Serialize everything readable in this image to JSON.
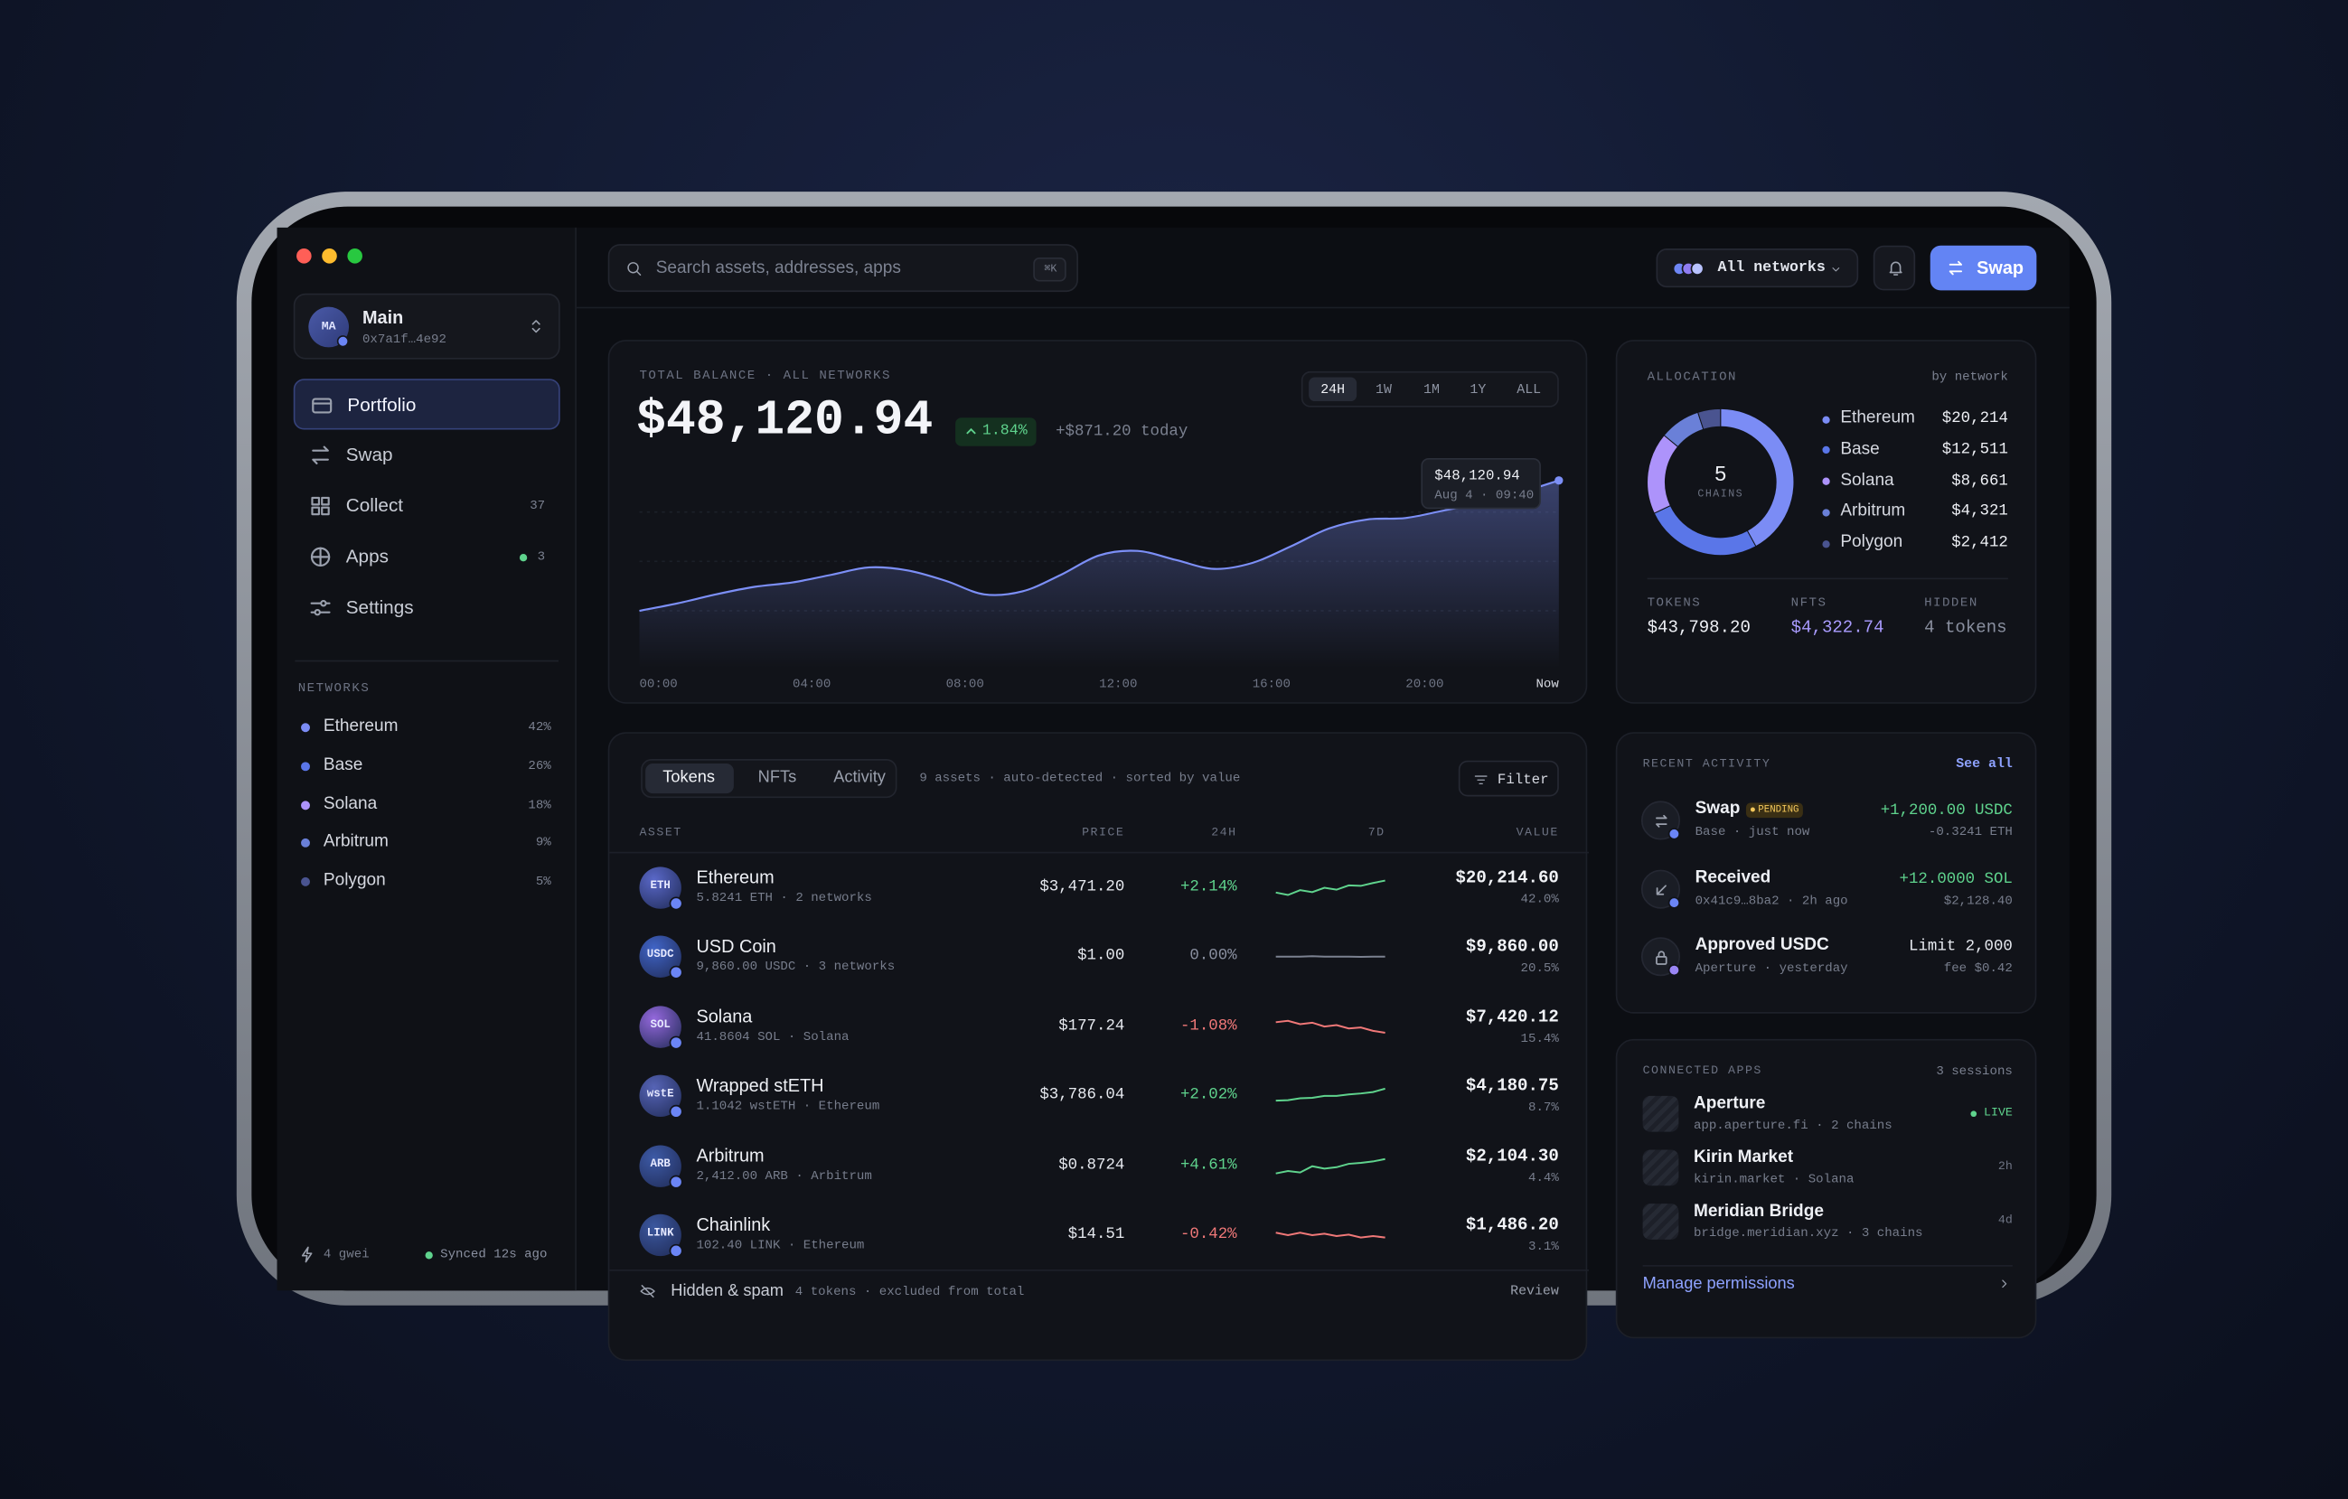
{
  "sidebar": {
    "account": {
      "avatar": "MA",
      "name": "Main",
      "address": "0x7a1f…4e92"
    },
    "nav": [
      {
        "label": "Portfolio"
      },
      {
        "label": "Swap"
      },
      {
        "label": "Collect",
        "badge": "37"
      },
      {
        "label": "Apps",
        "badge": "3"
      },
      {
        "label": "Settings"
      }
    ],
    "networks_title": "NETWORKS",
    "networks": [
      {
        "name": "Ethereum",
        "share": "42%",
        "color": "#7b8cf5"
      },
      {
        "name": "Base",
        "share": "26%",
        "color": "#5a76e8"
      },
      {
        "name": "Solana",
        "share": "18%",
        "color": "#ad93fb"
      },
      {
        "name": "Arbitrum",
        "share": "9%",
        "color": "#6a80d8"
      },
      {
        "name": "Polygon",
        "share": "5%",
        "color": "#4a5490"
      }
    ],
    "gas": "4 gwei",
    "sync": "Synced 12s ago"
  },
  "topbar": {
    "search_placeholder": "Search assets, addresses, apps",
    "shortcut": "⌘K",
    "network_filter": "All networks",
    "swap_button": "Swap"
  },
  "balance_card": {
    "label": "TOTAL BALANCE · ALL NETWORKS",
    "total": "$48,120.94",
    "change_pct": "1.84%",
    "change_today": "+$871.20 today",
    "ranges": [
      "24H",
      "1W",
      "1M",
      "1Y",
      "ALL"
    ],
    "active_range": "24H",
    "tooltip": {
      "value": "$48,120.94",
      "time": "Aug 4 · 09:40"
    }
  },
  "chart_data": [
    {
      "type": "area",
      "x": [
        0,
        1,
        2,
        3,
        4,
        5,
        6,
        7,
        8,
        9,
        10,
        11,
        12,
        13,
        14,
        15,
        16,
        17,
        18,
        19,
        20,
        21,
        22,
        23,
        24
      ],
      "series": [
        {
          "color": "#7c8ff7",
          "values": [
            47249.74,
            47300,
            47360,
            47410,
            47440,
            47490,
            47540,
            47520,
            47450,
            47360,
            47380,
            47490,
            47620,
            47650,
            47590,
            47530,
            47570,
            47680,
            47800,
            47860,
            47870,
            47920,
            47970,
            48040,
            48120.94
          ]
        }
      ],
      "xlim": [
        0,
        24
      ],
      "xticks": [
        {
          "value": 0,
          "label": "00:00"
        },
        {
          "value": 4,
          "label": "04:00"
        },
        {
          "value": 8,
          "label": "08:00"
        },
        {
          "value": 12,
          "label": "12:00"
        },
        {
          "value": 16,
          "label": "16:00"
        },
        {
          "value": 20,
          "label": "20:00"
        },
        {
          "value": 24,
          "label": "Now"
        }
      ],
      "ylim": [
        47000,
        48200
      ]
    },
    {
      "type": "donut",
      "title": "ALLOCATION",
      "subtitle": "by network",
      "center_value": 5,
      "center_label": "CHAINS",
      "categories": [
        "Ethereum",
        "Base",
        "Solana",
        "Arbitrum",
        "Polygon"
      ],
      "values": [
        20214,
        12511,
        8661,
        4321,
        2412
      ],
      "value_labels": [
        "$20,214",
        "$12,511",
        "$8,661",
        "$4,321",
        "$2,412"
      ],
      "colors": [
        "#7b8cf5",
        "#5a76e8",
        "#ad93fb",
        "#6a80d8",
        "#4a5490"
      ]
    }
  ],
  "allocation": {
    "totals": [
      {
        "label": "TOKENS",
        "value": "$43,798.20"
      },
      {
        "label": "NFTS",
        "value": "$4,322.74"
      },
      {
        "label": "HIDDEN",
        "value": "4 tokens"
      }
    ]
  },
  "tokens": {
    "tabs": [
      "Tokens",
      "NFTs",
      "Activity"
    ],
    "active_tab": "Tokens",
    "summary": "9 assets · auto-detected · sorted by value",
    "filter": "Filter",
    "columns": [
      "ASSET",
      "PRICE",
      "24H",
      "7D",
      "VALUE"
    ],
    "sparkline_lim": [
      0,
      10
    ],
    "rows": [
      {
        "symbol": "ETH",
        "name": "Ethereum",
        "detail": "5.8241 ETH · 2 networks",
        "price": "$3,471.20",
        "change": "+2.14%",
        "value": "$20,214.60",
        "share": "42.0%",
        "color": "#5a68c8",
        "spark": [
          3,
          2,
          4,
          3.2,
          5,
          4.2,
          6,
          5.8,
          7,
          8
        ]
      },
      {
        "symbol": "USDC",
        "name": "USD Coin",
        "detail": "9,860.00 USDC · 3 networks",
        "price": "$1.00",
        "change": "0.00%",
        "value": "$9,860.00",
        "share": "20.5%",
        "color": "#4064c6",
        "spark": [
          5,
          5,
          5,
          5.2,
          5,
          5,
          5,
          4.9,
          5,
          5
        ]
      },
      {
        "symbol": "SOL",
        "name": "Solana",
        "detail": "41.8604 SOL · Solana",
        "price": "$177.24",
        "change": "-1.08%",
        "value": "$7,420.12",
        "share": "15.4%",
        "color": "#9468dc",
        "spark": [
          7,
          7.6,
          6.2,
          6.8,
          5.2,
          5.8,
          4.4,
          4.8,
          3.4,
          2.6
        ]
      },
      {
        "symbol": "wstE",
        "name": "Wrapped stETH",
        "detail": "1.1042 wstETH · Ethereum",
        "price": "$3,786.04",
        "change": "+2.02%",
        "value": "$4,180.75",
        "share": "8.7%",
        "color": "#5664b6",
        "spark": [
          3,
          3.2,
          4,
          4.2,
          5,
          5,
          5.6,
          6,
          6.6,
          8
        ]
      },
      {
        "symbol": "ARB",
        "name": "Arbitrum",
        "detail": "2,412.00 ARB · Arbitrum",
        "price": "$0.8724",
        "change": "+4.61%",
        "value": "$2,104.30",
        "share": "4.4%",
        "color": "#3d5aa6",
        "spark": [
          2,
          3,
          2.4,
          5,
          4,
          4.6,
          6,
          6.4,
          7,
          8
        ]
      },
      {
        "symbol": "LINK",
        "name": "Chainlink",
        "detail": "102.40 LINK · Ethereum",
        "price": "$14.51",
        "change": "-0.42%",
        "value": "$1,486.20",
        "share": "3.1%",
        "color": "#3b579e",
        "spark": [
          6,
          5,
          6,
          5,
          5.6,
          4.6,
          5.2,
          4,
          4.6,
          4
        ]
      }
    ],
    "footer": {
      "title": "Hidden & spam",
      "detail": "4 tokens · excluded from total",
      "action": "Review"
    }
  },
  "activity": {
    "title": "RECENT ACTIVITY",
    "action": "See all",
    "items": [
      {
        "title": "Swap",
        "badge": "PENDING",
        "detail": "Base · just now",
        "amount": "+1,200.00 USDC",
        "sub": "-0.3241 ETH"
      },
      {
        "title": "Received",
        "detail": "0x41c9…8ba2 · 2h ago",
        "amount": "+12.0000 SOL",
        "sub": "$2,128.40"
      },
      {
        "title": "Approved USDC",
        "detail": "Aperture · yesterday",
        "amount": "Limit 2,000",
        "sub": "fee $0.42"
      }
    ]
  },
  "apps": {
    "title": "CONNECTED APPS",
    "count": "3 sessions",
    "items": [
      {
        "name": "Aperture",
        "detail": "app.aperture.fi · 2 chains",
        "status": "LIVE"
      },
      {
        "name": "Kirin Market",
        "detail": "kirin.market · Solana",
        "status": "2h"
      },
      {
        "name": "Meridian Bridge",
        "detail": "bridge.meridian.xyz · 3 chains",
        "status": "4d"
      }
    ],
    "action": "Manage permissions"
  }
}
